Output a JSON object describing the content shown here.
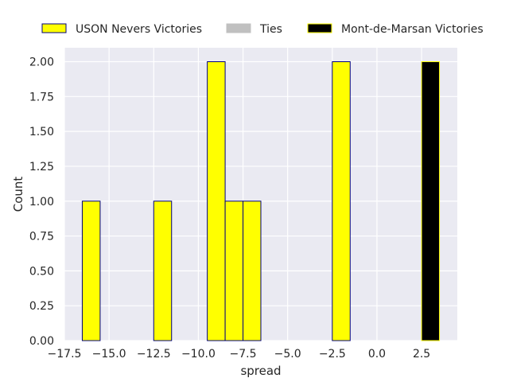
{
  "chart_data": {
    "type": "bar",
    "title": "",
    "xlabel": "spread",
    "ylabel": "Count",
    "xlim": [
      -17.5,
      4.5
    ],
    "ylim": [
      0,
      2.1
    ],
    "xticks": [
      "−17.5",
      "−15.0",
      "−12.5",
      "−10.0",
      "−7.5",
      "−5.0",
      "−2.5",
      "0.0",
      "2.5"
    ],
    "xtick_values": [
      -17.5,
      -15.0,
      -12.5,
      -10.0,
      -7.5,
      -5.0,
      -2.5,
      0.0,
      2.5
    ],
    "yticks": [
      "0.00",
      "0.25",
      "0.50",
      "0.75",
      "1.00",
      "1.25",
      "1.50",
      "1.75",
      "2.00"
    ],
    "ytick_values": [
      0,
      0.25,
      0.5,
      0.75,
      1.0,
      1.25,
      1.5,
      1.75,
      2.0
    ],
    "grid": true,
    "legend_position": "top",
    "series": [
      {
        "name": "USON Nevers Victories",
        "fill": "#ffff00",
        "edge": "#000080",
        "bins": [
          {
            "x0": -16.5,
            "x1": -15.5,
            "count": 1
          },
          {
            "x0": -12.5,
            "x1": -11.5,
            "count": 1
          },
          {
            "x0": -9.5,
            "x1": -8.5,
            "count": 2
          },
          {
            "x0": -8.5,
            "x1": -7.5,
            "count": 1
          },
          {
            "x0": -7.5,
            "x1": -6.5,
            "count": 1
          },
          {
            "x0": -2.5,
            "x1": -1.5,
            "count": 2
          }
        ]
      },
      {
        "name": "Ties",
        "fill": "#c0c0c0",
        "edge": "#c0c0c0",
        "bins": []
      },
      {
        "name": "Mont-de-Marsan Victories",
        "fill": "#000000",
        "edge": "#ffff00",
        "bins": [
          {
            "x0": 2.5,
            "x1": 3.5,
            "count": 2
          }
        ]
      }
    ]
  }
}
